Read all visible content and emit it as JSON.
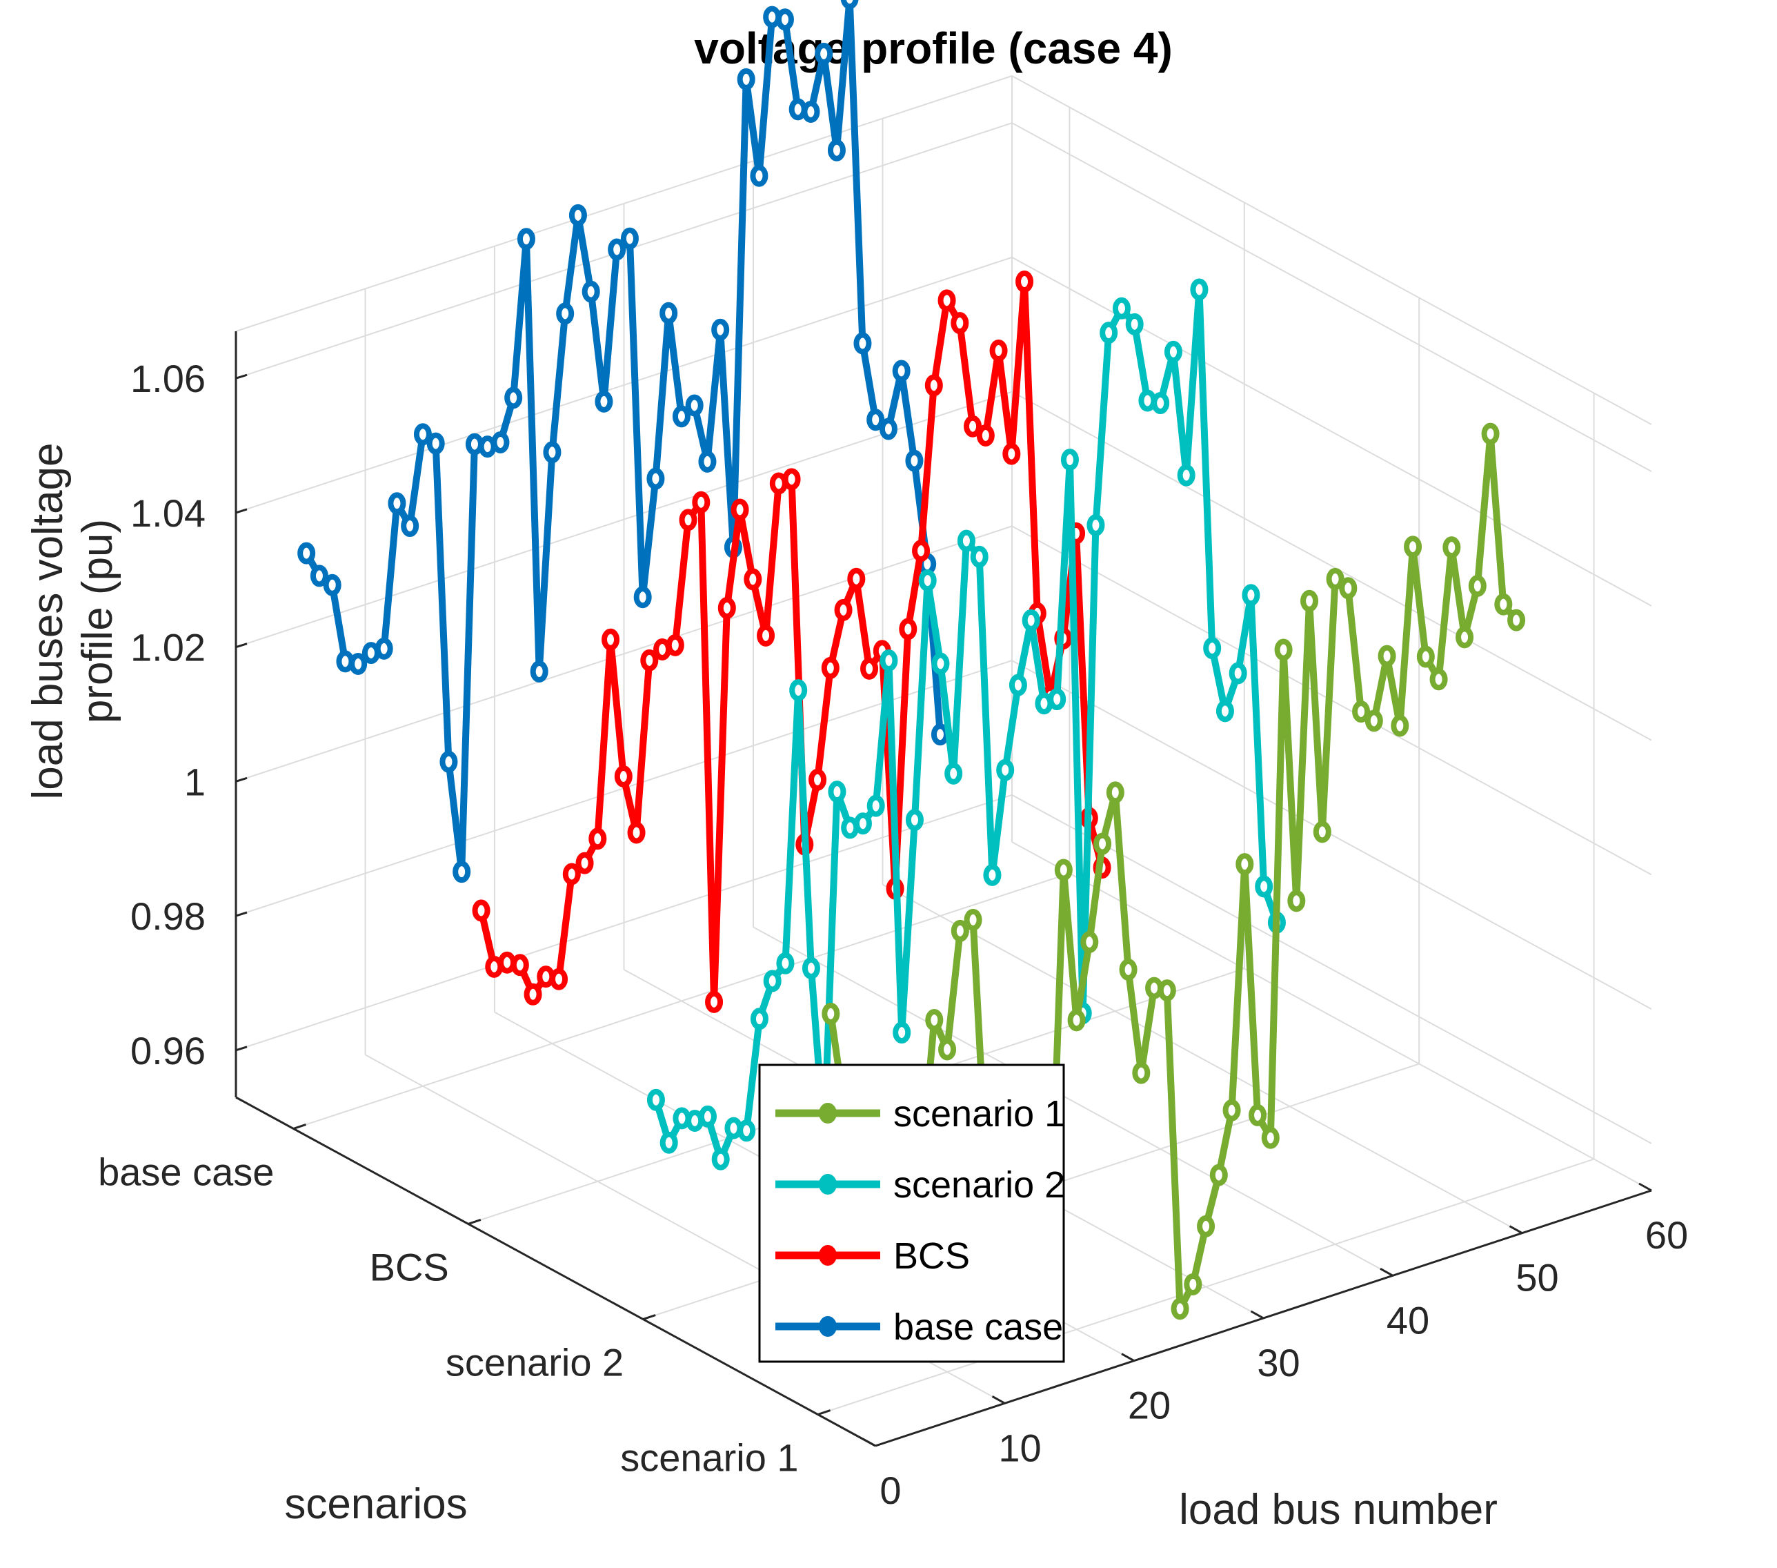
{
  "chart_data": {
    "type": "line3d",
    "title": "voltage profile (case 4)",
    "xlabel": "load bus number",
    "ylabel": "scenarios",
    "zlabel": "load buses voltage profile (pu)",
    "xlim": [
      0,
      60
    ],
    "xticks": [
      "0",
      "10",
      "20",
      "30",
      "40",
      "50",
      "60"
    ],
    "ycategories": [
      "base case",
      "BCS",
      "scenario 2",
      "scenario 1"
    ],
    "zlim": [
      0.953,
      1.067
    ],
    "zticks": [
      "0.96",
      "0.98",
      "1",
      "1.02",
      "1.04",
      "1.06"
    ],
    "grid": true,
    "legend_position": "bottom-center",
    "series": [
      {
        "name": "scenario 1",
        "color": "#77ac30",
        "category": "scenario 1",
        "values": [
          1.012,
          0.998,
          0.981,
          0.978,
          0.976,
          0.979,
          0.983,
          0.985,
          1.006,
          1.001,
          1.018,
          1.019,
          0.982,
          0.97,
          0.981,
          0.981,
          0.98,
          0.969,
          1.022,
          0.999,
          1.01,
          1.024,
          1.031,
          1.004,
          0.988,
          1.0,
          0.999,
          0.951,
          0.954,
          0.962,
          0.969,
          0.978,
          1.014,
          0.976,
          0.972,
          1.044,
          1.006,
          1.05,
          1.015,
          1.052,
          1.05,
          1.031,
          1.029,
          1.038,
          1.027,
          1.053,
          1.036,
          1.032,
          1.051,
          1.037,
          1.044,
          1.066,
          1.04,
          1.037
        ]
      },
      {
        "name": "scenario 2",
        "color": "#00bfbf",
        "category": "scenario 2",
        "values": [
          0.985,
          0.978,
          0.981,
          0.98,
          0.98,
          0.973,
          0.977,
          0.976,
          0.992,
          0.997,
          0.999,
          1.039,
          0.997,
          0.971,
          1.022,
          1.016,
          1.016,
          1.018,
          1.039,
          0.983,
          1.014,
          1.049,
          1.036,
          1.019,
          1.053,
          1.05,
          1.002,
          1.017,
          1.029,
          1.038,
          1.025,
          1.025,
          1.06,
          0.977,
          1.049,
          1.077,
          1.08,
          1.077,
          1.065,
          1.064,
          1.071,
          1.052,
          1.079,
          1.025,
          1.015,
          1.02,
          1.031,
          0.987,
          0.981
        ]
      },
      {
        "name": "BCS",
        "color": "#ff0000",
        "category": "BCS",
        "values": [
          0.999,
          0.99,
          0.99,
          0.989,
          0.984,
          0.986,
          0.985,
          1.0,
          1.001,
          1.004,
          1.033,
          1.012,
          1.003,
          1.028,
          1.029,
          1.029,
          1.047,
          1.049,
          0.974,
          1.032,
          1.046,
          1.035,
          1.026,
          1.048,
          1.048,
          0.993,
          1.002,
          1.018,
          1.026,
          1.03,
          1.016,
          1.018,
          0.982,
          1.02,
          1.031,
          1.055,
          1.067,
          1.063,
          1.047,
          1.045,
          1.057,
          1.041,
          1.066,
          1.016,
          1.003,
          1.011,
          1.026,
          0.983,
          0.975
        ]
      },
      {
        "name": "base case",
        "color": "#0072bd",
        "category": "base case",
        "values": [
          1.038,
          1.034,
          1.032,
          1.02,
          1.019,
          1.02,
          1.02,
          1.041,
          1.037,
          1.05,
          1.048,
          1.0,
          0.983,
          1.046,
          1.045,
          1.045,
          1.051,
          1.074,
          1.009,
          1.041,
          1.061,
          1.075,
          1.063,
          1.046,
          1.068,
          1.069,
          1.015,
          1.032,
          1.056,
          1.04,
          1.041,
          1.032,
          1.051,
          1.018,
          1.087,
          1.072,
          1.095,
          1.094,
          1.08,
          1.079,
          1.087,
          1.072,
          1.094,
          1.042,
          1.03,
          1.028,
          1.036,
          1.022,
          1.006,
          0.98
        ]
      }
    ]
  }
}
